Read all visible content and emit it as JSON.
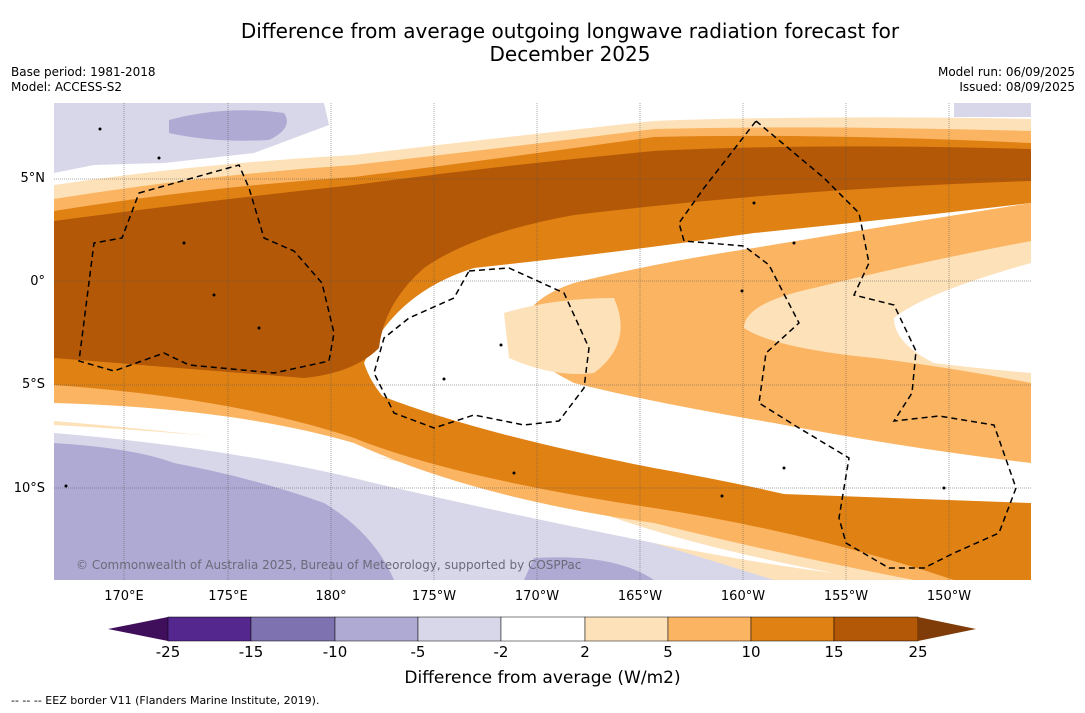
{
  "title_line1": "Difference from average outgoing longwave radiation forecast for",
  "title_line2": "December 2025",
  "base_period": "Base period: 1981-2018",
  "model": "Model: ACCESS-S2",
  "model_run": "Model run: 06/09/2025",
  "issued": "Issued: 08/09/2025",
  "lat_labels": [
    "5°N",
    "0°",
    "5°S",
    "10°S"
  ],
  "lon_labels": [
    "170°E",
    "175°E",
    "180°",
    "175°W",
    "170°W",
    "165°W",
    "160°W",
    "155°W",
    "150°W"
  ],
  "copyright": "© Commonwealth of Australia 2025, Bureau of Meteorology, supported by COSPPac",
  "colorbar": {
    "ticks": [
      "-25",
      "-15",
      "-10",
      "-5",
      "-2",
      "2",
      "5",
      "10",
      "15",
      "25"
    ],
    "colors": [
      "#3f0f5c",
      "#54278f",
      "#7f72b0",
      "#afaad3",
      "#d8d7ea",
      "#ffffff",
      "#fde1b8",
      "#fbb461",
      "#e08114",
      "#b35806",
      "#7f3b08"
    ],
    "label": "Difference from average (W/m2)"
  },
  "footnote": "--  --  -- EEZ border V11 (Flanders Marine Institute, 2019)."
}
